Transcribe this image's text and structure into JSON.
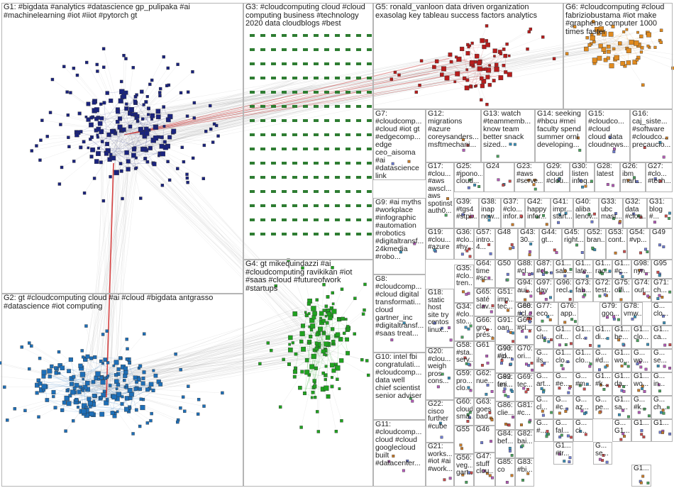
{
  "title": "",
  "group_colors": {
    "G1": "#1a237e",
    "G2": "#1e6fb8",
    "G3": "#2e7d32",
    "G4": "#1fa31f",
    "G5": "#b71c1c",
    "G6": "#e08a1e",
    "edge": "#9e9e9e"
  },
  "groups": [
    {
      "id": "G1",
      "label": "G1: #bigdata #analytics #datascience gp_pulipaka #ai\n#machinelearning #iot #iiot #pytorch gt"
    },
    {
      "id": "G2",
      "label": "G2: gt #cloudcomputing cloud #ai #cloud #bigdata antgrasso\n#datascience #iot computing"
    },
    {
      "id": "G3",
      "label": "G3: #cloudcomputing cloud #cloud\ncomputing business #technology\n2020 data cloudblogs #best"
    },
    {
      "id": "G4",
      "label": "G4: gt mikequindazzi #ai\n#cloudcomputing ravikikan #iot\n#saas #cloud #futureofwork\n#startups"
    },
    {
      "id": "G5",
      "label": "G5: ronald_vanloon data driven organization\nexasolag key tableau success factors analytics"
    },
    {
      "id": "G6",
      "label": "G6: #cloudcomputing #cloud\nfabriziobustama #iot make\n#graphene computer 1000\ntimes faster"
    },
    {
      "id": "G7",
      "label": "G7:\n#cloudcomp...\n#cloud #iot gt\n#edgecomp...\nedge\nceo_aisoma\n#ai\n#datascience\nlink"
    },
    {
      "id": "G8",
      "label": "G8:\n#cloudcomp...\n#cloud digital\ntransformati...\ncloud\ngartner_inc\n#digitaltransf...\n#saas treat..."
    },
    {
      "id": "G9",
      "label": "G9: #ai myths\n#workplace\n#infographic\n#automation\n#robotics\n#digitaltransf...\n24kmedia\n#robo..."
    },
    {
      "id": "G10",
      "label": "G10: intel fbi\ncongratulati...\n#cloudcomp...\ndata well\nchief scientist\nsenior adviser"
    },
    {
      "id": "G11",
      "label": "G11:\n#cloudcomp...\ncloud #cloud\ngooglecloud\nbuilt\n#datacenter..."
    },
    {
      "id": "G12",
      "label": "G12:\nmigrations\n#azure\ncoreysanders...\nmsftmechani..."
    },
    {
      "id": "G13",
      "label": "G13: watch\n#teammemb...\nknow team\nbetter snack\nsized..."
    },
    {
      "id": "G14",
      "label": "G14: seeking\n#hbcu #mei\nfaculty spend\nsummer ornl\ndeveloping..."
    },
    {
      "id": "G15",
      "label": "G15:\n#cloudco...\n#cloud\ncloud data\ncloudnews..."
    },
    {
      "id": "G16",
      "label": "G16:\ncaj_siste...\n#software\n#cloudco...\nprecaucio..."
    },
    {
      "id": "G17",
      "label": "G17:\n#clou...\n#aws\nawscl...\naws\nspotinst\nauth0..."
    },
    {
      "id": "G18",
      "label": "G18:\nstatic\nhost\nsite try\ncentos\nlinux..."
    },
    {
      "id": "G19",
      "label": "G19:\n#clou...\n#azure"
    },
    {
      "id": "G20",
      "label": "G20:\n#clou...\nweigh\npros\ncons..."
    },
    {
      "id": "G21",
      "label": "G21:\nworks...\n#iot #ai\n#work..."
    },
    {
      "id": "G22",
      "label": "G22:\ncisco\nfurther\n#cube"
    },
    {
      "id": "G23",
      "label": "G23:\n#aws\n#serve..."
    },
    {
      "id": "G24",
      "label": "G24"
    },
    {
      "id": "G25",
      "label": "G25:\n#jpono...\ncloud..."
    },
    {
      "id": "G26",
      "label": "G26:\nibm\nmari..."
    },
    {
      "id": "G27",
      "label": "G27:\n#clo...\n#tech..."
    },
    {
      "id": "G28",
      "label": "G28:\nlatest"
    },
    {
      "id": "G29",
      "label": "G29:\ncloud\n#clou..."
    },
    {
      "id": "G30",
      "label": "G30:\nlisten\ninfoq..."
    },
    {
      "id": "G31",
      "label": "G31:\nblog\n#..."
    },
    {
      "id": "G32",
      "label": "G32:\ndata\n#clou..."
    },
    {
      "id": "G33",
      "label": "G33:\nubc\nmast..."
    },
    {
      "id": "G34",
      "label": "G34:\n#clo...\nsto..."
    },
    {
      "id": "G35",
      "label": "G35:\n#clo...\ntren..."
    },
    {
      "id": "G36",
      "label": "G36:\n#clo...\n#hy..."
    },
    {
      "id": "G37",
      "label": "G37:\n#clo...\ninfor..."
    },
    {
      "id": "G38",
      "label": "G38:\ninap\nnew..."
    },
    {
      "id": "G39",
      "label": "G39:\n#tgs4\n#stpi..."
    },
    {
      "id": "G40",
      "label": "G40:\naliba\nlenov..."
    },
    {
      "id": "G41",
      "label": "G41:\nimpr...\nstart..."
    },
    {
      "id": "G42",
      "label": "G42:\nhappy\ninfor..."
    },
    {
      "id": "G43",
      "label": "G43:\n30..."
    },
    {
      "id": "G44",
      "label": "G44:\ngt..."
    },
    {
      "id": "G45",
      "label": "G45:\nright..."
    },
    {
      "id": "G46",
      "label": "G46"
    },
    {
      "id": "G47",
      "label": "G47:\nstuff\nclou..."
    },
    {
      "id": "G48",
      "label": "G48"
    },
    {
      "id": "G49",
      "label": "G49"
    },
    {
      "id": "G50",
      "label": "G50"
    },
    {
      "id": "G51",
      "label": "G51:\nimp...\ntec..."
    },
    {
      "id": "G52",
      "label": "G52:\nbran..."
    },
    {
      "id": "G53",
      "label": "G53:\ncont..."
    },
    {
      "id": "G54",
      "label": "G54:\n#vp..."
    },
    {
      "id": "G55",
      "label": "G55"
    },
    {
      "id": "G56",
      "label": "G56:\nveg...\ngart..."
    },
    {
      "id": "G57",
      "label": "G57:\nintro...\n4..."
    },
    {
      "id": "G58",
      "label": "G58:\n#sta...\nserv..."
    },
    {
      "id": "G59",
      "label": "G59:\npro...\nclo..."
    },
    {
      "id": "G60",
      "label": "G60:\ncloud\nsma..."
    },
    {
      "id": "G61",
      "label": "G61"
    },
    {
      "id": "G62",
      "label": "G62:\nnue..."
    },
    {
      "id": "G63",
      "label": "G63:\ngoes\nbad..."
    },
    {
      "id": "G64",
      "label": "G64:\ntime\n#sc..."
    },
    {
      "id": "G65",
      "label": "G65:\nsaté\nclav..."
    },
    {
      "id": "G66",
      "label": "G66:\ngro...\nprés..."
    },
    {
      "id": "G67",
      "label": "G67:\n#cl..."
    },
    {
      "id": "G68",
      "label": "G68"
    },
    {
      "id": "G69",
      "label": "G69:\ntec..."
    },
    {
      "id": "G70",
      "label": "G70:\nori..."
    },
    {
      "id": "G71",
      "label": "G71:\nch..."
    },
    {
      "id": "G72",
      "label": "G72:\ntest..."
    },
    {
      "id": "G73",
      "label": "G73:\nfab..."
    },
    {
      "id": "G74",
      "label": "G74:\nout..."
    },
    {
      "id": "G75",
      "label": "G75:\noffi..."
    },
    {
      "id": "G76",
      "label": "G76:\napp..."
    },
    {
      "id": "G77",
      "label": "G77:\neco..."
    },
    {
      "id": "G78",
      "label": "G78:\nvmw..."
    },
    {
      "id": "G79",
      "label": "G79:\ngoo..."
    },
    {
      "id": "G80",
      "label": "G80:\n#cl..."
    },
    {
      "id": "G81",
      "label": "G81:\n#c..."
    },
    {
      "id": "G82",
      "label": "G82:\nbai..."
    },
    {
      "id": "G83",
      "label": "G83:\n#bi..."
    },
    {
      "id": "G84",
      "label": "G84:\nbef..."
    },
    {
      "id": "G85",
      "label": "G85:\nco"
    },
    {
      "id": "G86",
      "label": "G86:\nclie..."
    },
    {
      "id": "G87",
      "label": "G87:\n#cl..."
    },
    {
      "id": "G88",
      "label": "G88:\n#cl..."
    },
    {
      "id": "G89",
      "label": "G89:\nfes..."
    },
    {
      "id": "G90",
      "label": "G90:\n#jo..."
    },
    {
      "id": "G91",
      "label": "G91:\noan..."
    },
    {
      "id": "G92",
      "label": "G92:\nuni..."
    },
    {
      "id": "G93",
      "label": "G93:\n#cl..."
    },
    {
      "id": "G94",
      "label": "G94:\naui..."
    },
    {
      "id": "G95",
      "label": "G95"
    },
    {
      "id": "G96",
      "label": "G96:\nrecl..."
    },
    {
      "id": "G97",
      "label": "G97:\nday"
    },
    {
      "id": "G98",
      "label": "G98:\nnyn..."
    },
    {
      "id": "G1x1",
      "label": "G1...\nsab..."
    },
    {
      "id": "G1x2",
      "label": "G1...\nlate..."
    },
    {
      "id": "G1x3",
      "label": "G1...\nrac..."
    },
    {
      "id": "G1x4",
      "label": "G1...\n#c..."
    },
    {
      "id": "G1x5",
      "label": "G...\ncit..."
    },
    {
      "id": "G1x6",
      "label": "G1...\ncit..."
    },
    {
      "id": "G1x7",
      "label": "G1...\ncl..."
    },
    {
      "id": "G1x8",
      "label": "G1...\ndi..."
    },
    {
      "id": "G1x9",
      "label": "G1...\nbe..."
    },
    {
      "id": "G1x10",
      "label": "G1...\nclo..."
    },
    {
      "id": "G1x11",
      "label": "G...\nils..."
    },
    {
      "id": "G1x12",
      "label": "G1...\nclo..."
    },
    {
      "id": "G1x13",
      "label": "G1...\nclo..."
    },
    {
      "id": "G1x14",
      "label": "G1...\nwo..."
    },
    {
      "id": "G1x15",
      "label": "G...\nwo..."
    },
    {
      "id": "G1x16",
      "label": "G...\nclo..."
    },
    {
      "id": "G1x17",
      "label": "G...\n#d..."
    },
    {
      "id": "G1x18",
      "label": "G1...\nca..."
    },
    {
      "id": "G1x19",
      "label": "G1...\nda..."
    },
    {
      "id": "G1x20",
      "label": "G...\nse..."
    },
    {
      "id": "G1x21",
      "label": "G1...\nwo..."
    },
    {
      "id": "G1x22",
      "label": "G...\n#e..."
    },
    {
      "id": "G1x23",
      "label": "G...\nart..."
    },
    {
      "id": "G1x24",
      "label": "G...\nin..."
    },
    {
      "id": "G1x25",
      "label": "G...\n#m..."
    },
    {
      "id": "G1x26",
      "label": "G1...\n#k..."
    },
    {
      "id": "G1x27",
      "label": "G...\npe..."
    },
    {
      "id": "G1x28",
      "label": "G1...\nsa..."
    },
    {
      "id": "G1x29",
      "label": "G...\ncl..."
    },
    {
      "id": "G1x30",
      "label": "G...\n#c..."
    },
    {
      "id": "G1x31",
      "label": "G...\nch..."
    },
    {
      "id": "G1x32",
      "label": "G...\naz..."
    },
    {
      "id": "G1x33",
      "label": "G...\n#k..."
    },
    {
      "id": "G1x34",
      "label": "G...\n#..."
    },
    {
      "id": "G1x35",
      "label": "G...\nfal..."
    },
    {
      "id": "G1x36",
      "label": "G...\ncl..."
    },
    {
      "id": "G1x37",
      "label": "G...\nse..."
    },
    {
      "id": "G1x38",
      "label": "G...\nG1..."
    },
    {
      "id": "G1x39",
      "label": "G1...\n#tr..."
    },
    {
      "id": "G1x40",
      "label": "G1..."
    },
    {
      "id": "G1x41",
      "label": "G1..."
    },
    {
      "id": "G1x42",
      "label": "G1..."
    }
  ]
}
